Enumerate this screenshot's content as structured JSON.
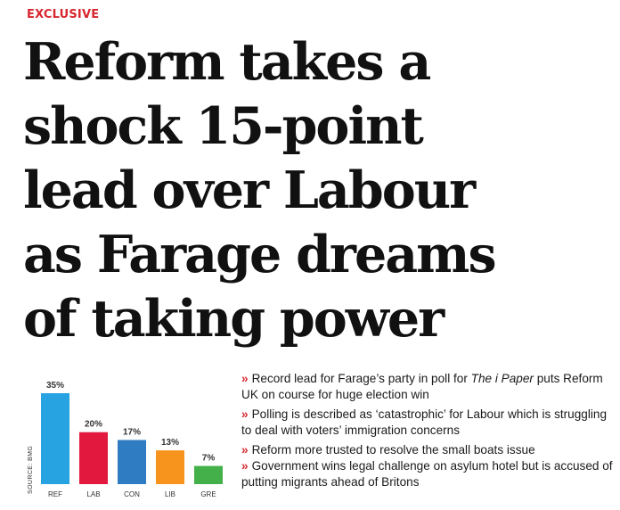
{
  "kicker": "EXCLUSIVE",
  "headline": {
    "lines": [
      "Reform takes a",
      "shock 15-point",
      "lead over Labour",
      "as Farage dreams",
      "of taking power"
    ]
  },
  "chart_data": {
    "type": "bar",
    "categories": [
      "REF",
      "LAB",
      "CON",
      "LIB",
      "GRE"
    ],
    "values": [
      35,
      20,
      17,
      13,
      7
    ],
    "value_labels": [
      "35%",
      "20%",
      "17%",
      "13%",
      "7%"
    ],
    "colors": [
      "#27a3e2",
      "#e2183e",
      "#2f7cc2",
      "#f7941d",
      "#44b049"
    ],
    "source": "SOURCE: BMG",
    "ylim": [
      0,
      35
    ],
    "grid": false
  },
  "bullets": {
    "marker": "»",
    "items": [
      {
        "before": "Record lead for Farage’s party in poll for ",
        "italic": "The i Paper",
        "after": " puts Reform UK on course for huge election win"
      },
      {
        "before": "Polling is described as ‘catastrophic’ for Labour which is struggling to deal with voters’ immigration concerns",
        "italic": "",
        "after": ""
      },
      {
        "before": "Reform more trusted to resolve the small boats issue",
        "italic": "",
        "after": ""
      },
      {
        "before": "Government wins legal challenge on asylum hotel but is accused of putting migrants ahead of Britons",
        "italic": "",
        "after": ""
      }
    ]
  }
}
